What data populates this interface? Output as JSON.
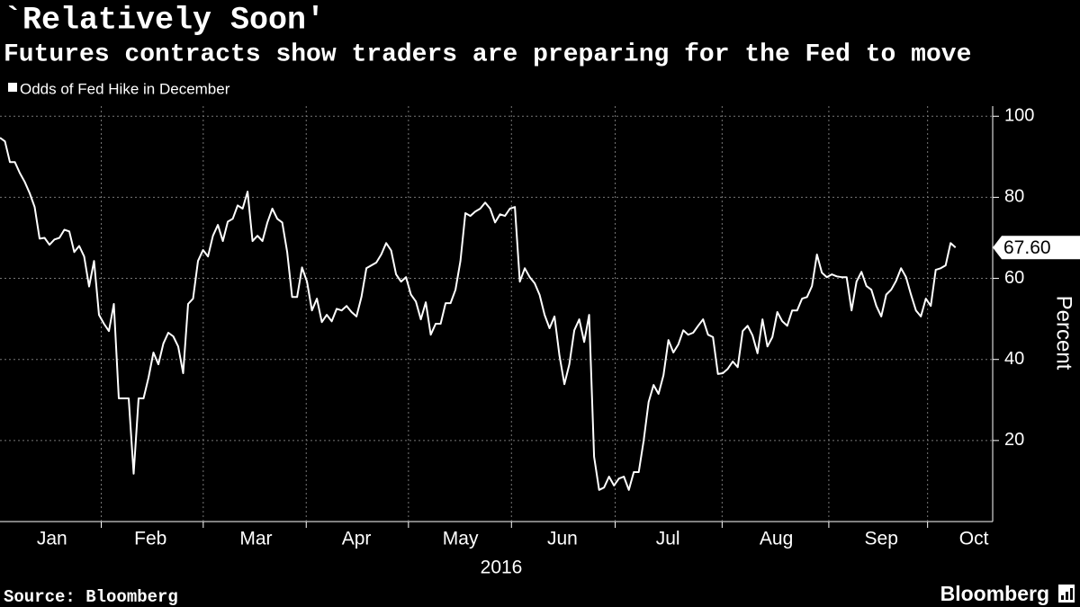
{
  "chart_data": {
    "type": "line",
    "title": "`Relatively Soon'",
    "subtitle": "Futures contracts show traders are preparing for the Fed to move",
    "y_label": "Percent",
    "x_label": "2016",
    "source": "Source: Bloomberg",
    "brand": "Bloomberg",
    "end_label": "67.60",
    "series": [
      {
        "name": "Odds of Fed Hike in December",
        "color": "#ffffff",
        "values": [
          94.7,
          93.8,
          88.7,
          88.7,
          86,
          83.8,
          81,
          77.6,
          69.8,
          70,
          68.3,
          69.6,
          70,
          72,
          71.6,
          66.5,
          68,
          65.4,
          58,
          64.3,
          51,
          48.8,
          47,
          53.7,
          30.4,
          30.4,
          30.4,
          11.8,
          30.4,
          30.4,
          35.5,
          41.7,
          38.8,
          43.9,
          46.6,
          45.7,
          43.2,
          36.6,
          53.7,
          55,
          64.3,
          67,
          65.4,
          70.5,
          73.2,
          69.2,
          74,
          74.7,
          78,
          77.2,
          81.4,
          69.2,
          70.5,
          69.2,
          73.8,
          77.2,
          74.7,
          73.8,
          66.5,
          55.4,
          55.4,
          62.7,
          59.2,
          52.1,
          55,
          49.2,
          51,
          49.4,
          52.5,
          52.1,
          53.2,
          51.7,
          50.6,
          55.4,
          62.5,
          63.2,
          63.9,
          65.9,
          68.7,
          66.9,
          61,
          59.2,
          60.3,
          56,
          54.3,
          49.9,
          54.1,
          46.1,
          48.8,
          48.8,
          53.9,
          53.9,
          57.2,
          64.3,
          76.1,
          75.4,
          76.5,
          77.2,
          78.7,
          77.2,
          73.8,
          75.8,
          75.4,
          77.2,
          77.6,
          59.2,
          62.5,
          60.3,
          58.8,
          55.9,
          51,
          47.7,
          50.6,
          41,
          33.9,
          38.8,
          47.2,
          49.9,
          44.3,
          51,
          16,
          7.8,
          8.4,
          11.1,
          8.9,
          10.6,
          11.1,
          7.8,
          12.2,
          12.2,
          20,
          29.5,
          33.7,
          31.5,
          36.1,
          44.8,
          41.7,
          43.7,
          47.2,
          46.1,
          46.6,
          48.3,
          49.9,
          46.1,
          45.5,
          36.4,
          36.6,
          37.7,
          39.5,
          38.1,
          47,
          48.3,
          45.9,
          41.5,
          49.9,
          43.2,
          45.5,
          51.7,
          49.4,
          48.3,
          52.1,
          52.1,
          55,
          55.4,
          58.1,
          65.9,
          61.4,
          60.3,
          61,
          60.5,
          60.3,
          60.3,
          52.1,
          59.2,
          61.6,
          58.1,
          57.2,
          53.2,
          50.6,
          56,
          57.2,
          59.4,
          62.5,
          60.3,
          56,
          52.1,
          50.6,
          55,
          53.2,
          62.1,
          62.5,
          63.2,
          68.7,
          67.6
        ]
      }
    ],
    "xlim": [
      0,
      200.5
    ],
    "xticks": [
      {
        "value": 10.5,
        "label": "Jan"
      },
      {
        "value": 30.4,
        "label": "Feb"
      },
      {
        "value": 51.7,
        "label": "Mar"
      },
      {
        "value": 72,
        "label": "Apr"
      },
      {
        "value": 93,
        "label": "May"
      },
      {
        "value": 113.6,
        "label": "Jun"
      },
      {
        "value": 134.9,
        "label": "Jul"
      },
      {
        "value": 156.8,
        "label": "Aug"
      },
      {
        "value": 178,
        "label": "Sep"
      },
      {
        "value": 196.7,
        "label": "Oct"
      }
    ],
    "ylim": [
      0,
      102.5
    ],
    "yticks": [
      20,
      40,
      60,
      80,
      100
    ],
    "grid": true
  }
}
